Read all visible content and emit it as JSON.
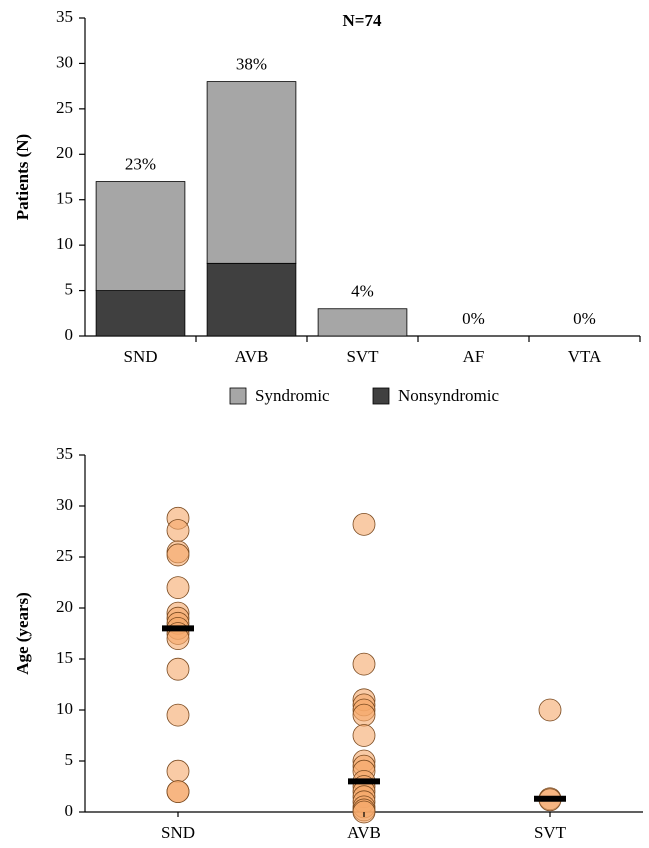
{
  "chart_data": [
    {
      "type": "stacked-bar",
      "title": "N=74",
      "ylabel": "Patients (N)",
      "categories": [
        "SND",
        "AVB",
        "SVT",
        "AF",
        "VTA"
      ],
      "series": [
        {
          "name": "Nonsyndromic",
          "color": "#404040",
          "values": [
            5,
            8,
            0,
            0,
            0
          ]
        },
        {
          "name": "Syndromic",
          "color": "#a6a6a6",
          "values": [
            12,
            20,
            3,
            0,
            0
          ]
        }
      ],
      "annotations": [
        "23%",
        "38%",
        "4%",
        "0%",
        "0%"
      ],
      "legend": "bottom",
      "ylim": [
        0,
        35
      ],
      "yticks": [
        0,
        5,
        10,
        15,
        20,
        25,
        30,
        35
      ]
    },
    {
      "type": "strip",
      "ylabel": "Age (years)",
      "categories": [
        "SND",
        "AVB",
        "SVT"
      ],
      "color": "#f5a86a",
      "values": [
        [
          28.8,
          27.6,
          25.5,
          25.2,
          22,
          19.5,
          19,
          18.5,
          18,
          17.5,
          17,
          14,
          9.5,
          4,
          2,
          2
        ],
        [
          28.2,
          14.5,
          11,
          10.5,
          10,
          9.5,
          7.5,
          5,
          4.5,
          4,
          3,
          2.5,
          2,
          1.5,
          1,
          0.5,
          0.2,
          0
        ],
        [
          10,
          1.3,
          1.2
        ]
      ],
      "medians": [
        18,
        3,
        1.3
      ],
      "ylim": [
        0,
        35
      ],
      "yticks": [
        0,
        5,
        10,
        15,
        20,
        25,
        30,
        35
      ]
    }
  ]
}
